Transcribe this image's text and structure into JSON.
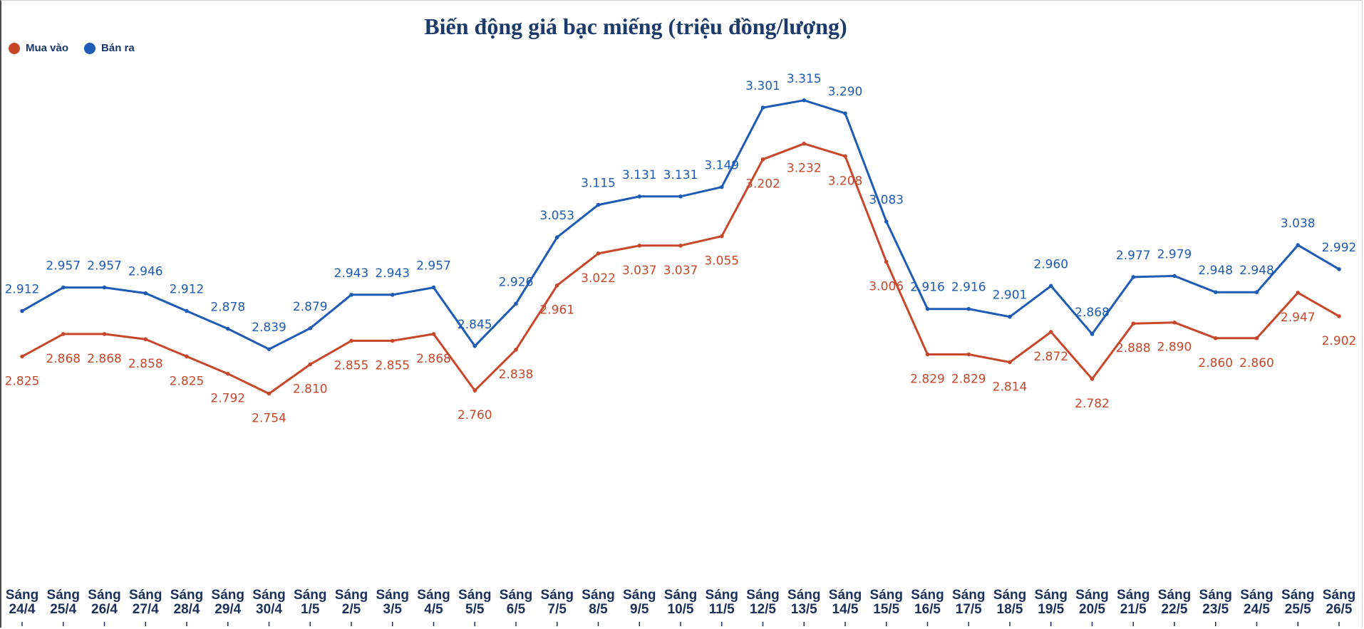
{
  "chart_data": {
    "type": "line",
    "title": "Biến động giá bạc miếng (triệu đồng/lượng)",
    "xlabel": "",
    "ylabel": "",
    "legend_position": "top-left",
    "grid": false,
    "categories": [
      [
        "Sáng",
        "24/4"
      ],
      [
        "Sáng",
        "25/4"
      ],
      [
        "Sáng",
        "26/4"
      ],
      [
        "Sáng",
        "27/4"
      ],
      [
        "Sáng",
        "28/4"
      ],
      [
        "Sáng",
        "29/4"
      ],
      [
        "Sáng",
        "30/4"
      ],
      [
        "Sáng",
        "1/5"
      ],
      [
        "Sáng",
        "2/5"
      ],
      [
        "Sáng",
        "3/5"
      ],
      [
        "Sáng",
        "4/5"
      ],
      [
        "Sáng",
        "5/5"
      ],
      [
        "Sáng",
        "6/5"
      ],
      [
        "Sáng",
        "7/5"
      ],
      [
        "Sáng",
        "8/5"
      ],
      [
        "Sáng",
        "9/5"
      ],
      [
        "Sáng",
        "10/5"
      ],
      [
        "Sáng",
        "11/5"
      ],
      [
        "Sáng",
        "12/5"
      ],
      [
        "Sáng",
        "13/5"
      ],
      [
        "Sáng",
        "14/5"
      ],
      [
        "Sáng",
        "15/5"
      ],
      [
        "Sáng",
        "16/5"
      ],
      [
        "Sáng",
        "17/5"
      ],
      [
        "Sáng",
        "18/5"
      ],
      [
        "Sáng",
        "19/5"
      ],
      [
        "Sáng",
        "20/5"
      ],
      [
        "Sáng",
        "21/5"
      ],
      [
        "Sáng",
        "22/5"
      ],
      [
        "Sáng",
        "23/5"
      ],
      [
        "Sáng",
        "24/5"
      ],
      [
        "Sáng",
        "25/5"
      ],
      [
        "Sáng",
        "26/5"
      ]
    ],
    "series": [
      {
        "name": "Mua vào",
        "color": "#c8472a",
        "label_position": "below",
        "values": [
          2.825,
          2.868,
          2.868,
          2.858,
          2.825,
          2.792,
          2.754,
          2.81,
          2.855,
          2.855,
          2.868,
          2.76,
          2.838,
          2.961,
          3.022,
          3.037,
          3.037,
          3.055,
          3.202,
          3.232,
          3.208,
          3.006,
          2.829,
          2.829,
          2.814,
          2.872,
          2.782,
          2.888,
          2.89,
          2.86,
          2.86,
          2.947,
          2.902
        ],
        "labels": [
          "2.825",
          "2.868",
          "2.868",
          "2.858",
          "2.825",
          "2.792",
          "2.754",
          "2.810",
          "2.855",
          "2.855",
          "2.868",
          "2.760",
          "2.838",
          "2.961",
          "3.022",
          "3.037",
          "3.037",
          "3.055",
          "3.202",
          "3.232",
          "3.208",
          "3.006",
          "2.829",
          "2.829",
          "2.814",
          "2.872",
          "2.782",
          "2.888",
          "2.890",
          "2.860",
          "2.860",
          "2.947",
          "2.902"
        ]
      },
      {
        "name": "Bán ra",
        "color": "#1d5bb5",
        "label_position": "above",
        "values": [
          2.912,
          2.957,
          2.957,
          2.946,
          2.912,
          2.878,
          2.839,
          2.879,
          2.943,
          2.943,
          2.957,
          2.845,
          2.926,
          3.053,
          3.115,
          3.131,
          3.131,
          3.149,
          3.301,
          3.315,
          3.29,
          3.083,
          2.916,
          2.916,
          2.901,
          2.96,
          2.868,
          2.977,
          2.979,
          2.948,
          2.948,
          3.038,
          2.992
        ],
        "labels": [
          "2.912",
          "2.957",
          "2.957",
          "2.946",
          "2.912",
          "2.878",
          "2.839",
          "2.879",
          "2.943",
          "2.943",
          "2.957",
          "2.845",
          "2.926",
          "3.053",
          "3.115",
          "3.131",
          "3.131",
          "3.149",
          "3.301",
          "3.315",
          "3.290",
          "3.083",
          "2.916",
          "2.916",
          "2.901",
          "2.960",
          "2.868",
          "2.977",
          "2.979",
          "2.948",
          "2.948",
          "3.038",
          "2.992"
        ]
      }
    ]
  }
}
